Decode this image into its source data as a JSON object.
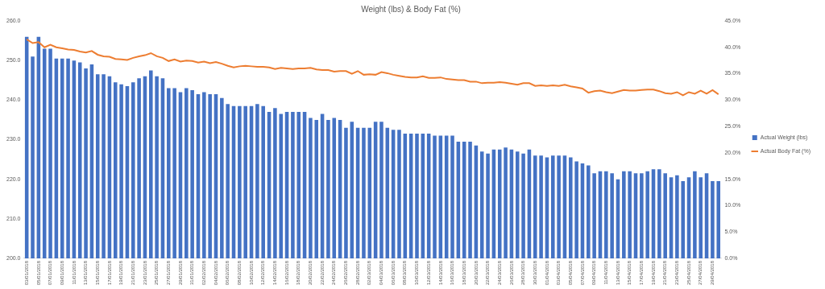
{
  "chart_data": {
    "type": "bar",
    "title": "Weight (lbs) & Body Fat (%)",
    "categories": [
      "03/01/2018",
      null,
      "05/01/2018",
      null,
      "07/01/2018",
      null,
      "09/01/2018",
      null,
      "11/01/2018",
      null,
      "13/01/2018",
      null,
      "15/01/2018",
      null,
      "17/01/2018",
      null,
      "19/01/2018",
      null,
      "21/01/2018",
      null,
      "23/01/2018",
      null,
      "25/01/2018",
      null,
      "27/01/2018",
      null,
      "29/01/2018",
      null,
      "31/01/2018",
      null,
      "02/02/2018",
      null,
      "04/02/2018",
      null,
      "06/02/2018",
      null,
      "08/02/2018",
      null,
      "10/02/2018",
      null,
      "12/02/2018",
      null,
      "14/02/2018",
      null,
      "16/02/2018",
      null,
      "18/02/2018",
      null,
      "20/02/2018",
      null,
      "22/02/2018",
      null,
      "24/02/2018",
      null,
      "26/02/2018",
      null,
      "28/02/2018",
      null,
      "02/03/2018",
      null,
      "04/03/2018",
      null,
      "06/03/2018",
      null,
      "08/03/2018",
      null,
      "10/03/2018",
      null,
      "12/03/2018",
      null,
      "14/03/2018",
      null,
      "16/03/2018",
      null,
      "18/03/2018",
      null,
      "20/03/2018",
      null,
      "22/03/2018",
      null,
      "24/03/2018",
      null,
      "26/03/2018",
      null,
      "28/03/2018",
      null,
      "30/03/2018",
      null,
      "01/04/2018",
      null,
      "03/04/2018",
      null,
      "05/04/2018",
      null,
      "07/04/2018",
      null,
      "09/04/2018",
      null,
      "11/04/2018",
      null,
      "13/04/2018",
      null,
      "15/04/2018",
      null,
      "17/04/2018",
      null,
      "19/04/2018",
      null,
      "21/04/2018",
      null,
      "23/04/2018",
      null,
      "25/04/2018",
      null,
      "27/04/2018",
      null,
      "29/04/2018",
      null
    ],
    "series": [
      {
        "name": "Actual Weight (lbs)",
        "type": "bar",
        "color": "#4472c4",
        "values": [
          256,
          251,
          256,
          253,
          253,
          250.5,
          250.5,
          250.5,
          250,
          249.5,
          248,
          249,
          246.5,
          246.5,
          246,
          244.5,
          244,
          243.5,
          244.5,
          245.5,
          246,
          247.5,
          246,
          245.5,
          243,
          243,
          242,
          243,
          242.5,
          241.5,
          242,
          241.5,
          241.5,
          240.5,
          239,
          238.5,
          238.5,
          238.5,
          238.5,
          239,
          238.5,
          237,
          238,
          236.5,
          237,
          237,
          237,
          237,
          235.5,
          235,
          236.5,
          235,
          235.5,
          235,
          233,
          234.5,
          233,
          233,
          233,
          234.5,
          234.5,
          233,
          232.5,
          232.5,
          231.5,
          231.5,
          231.5,
          231.5,
          231.5,
          231,
          231,
          231,
          231,
          229.5,
          229.5,
          229.5,
          228.5,
          227,
          226.5,
          227.5,
          227.5,
          228,
          227.5,
          227,
          226.5,
          227.5,
          226,
          226,
          225.5,
          226,
          226,
          226,
          225.5,
          224.5,
          224,
          223.5,
          221.5,
          222,
          222,
          221.5,
          220,
          222,
          222,
          221.5,
          221.5,
          222,
          222.5,
          222.5,
          221.5,
          220.5,
          221,
          219.5,
          220.5,
          222,
          220.5,
          221.5,
          219.5,
          219.5
        ]
      },
      {
        "name": "Actual Body Fat (%)",
        "type": "line",
        "color": "#ed7d31",
        "axis": "y2",
        "values": [
          41.5,
          40.8,
          41.0,
          40.0,
          40.5,
          40.0,
          39.8,
          39.6,
          39.5,
          39.2,
          39.0,
          39.3,
          38.6,
          38.3,
          38.2,
          37.8,
          37.7,
          37.6,
          38.0,
          38.3,
          38.5,
          38.9,
          38.3,
          38.0,
          37.4,
          37.7,
          37.3,
          37.5,
          37.4,
          37.1,
          37.3,
          37.0,
          37.2,
          36.9,
          36.5,
          36.2,
          36.4,
          36.5,
          36.4,
          36.3,
          36.3,
          36.2,
          35.9,
          36.1,
          36.0,
          35.9,
          36.0,
          36.0,
          36.1,
          35.8,
          35.7,
          35.7,
          35.4,
          35.5,
          35.5,
          35.0,
          35.5,
          34.8,
          34.9,
          34.8,
          35.3,
          35.1,
          34.8,
          34.6,
          34.4,
          34.3,
          34.3,
          34.5,
          34.2,
          34.2,
          34.3,
          34.0,
          33.9,
          33.8,
          33.8,
          33.5,
          33.5,
          33.2,
          33.3,
          33.3,
          33.4,
          33.3,
          33.1,
          32.9,
          33.2,
          33.2,
          32.7,
          32.8,
          32.7,
          32.8,
          32.7,
          32.9,
          32.6,
          32.4,
          32.2,
          31.4,
          31.7,
          31.8,
          31.5,
          31.3,
          31.6,
          31.9,
          31.8,
          31.8,
          31.9,
          32.0,
          32.0,
          31.7,
          31.3,
          31.2,
          31.5,
          30.9,
          31.5,
          31.2,
          31.8,
          31.2,
          31.9,
          31.1
        ]
      }
    ],
    "ylim": [
      200,
      260
    ],
    "yticks": [
      {
        "value": 200,
        "label": "200.0"
      },
      {
        "value": 210,
        "label": "210.0"
      },
      {
        "value": 220,
        "label": "220.0"
      },
      {
        "value": 230,
        "label": "230.0"
      },
      {
        "value": 240,
        "label": "240.0"
      },
      {
        "value": 250,
        "label": "250.0"
      },
      {
        "value": 260,
        "label": "260.0"
      }
    ],
    "y2lim": [
      0,
      45
    ],
    "y2ticks": [
      {
        "value": 0,
        "label": "0.0%"
      },
      {
        "value": 5,
        "label": "5.0%"
      },
      {
        "value": 10,
        "label": "10.0%"
      },
      {
        "value": 15,
        "label": "15.0%"
      },
      {
        "value": 20,
        "label": "20.0%"
      },
      {
        "value": 25,
        "label": "25.0%"
      },
      {
        "value": 30,
        "label": "30.0%"
      },
      {
        "value": 35,
        "label": "35.0%"
      },
      {
        "value": 40,
        "label": "40.0%"
      },
      {
        "value": 45,
        "label": "45.0%"
      }
    ],
    "grid": false,
    "legend": "right"
  }
}
